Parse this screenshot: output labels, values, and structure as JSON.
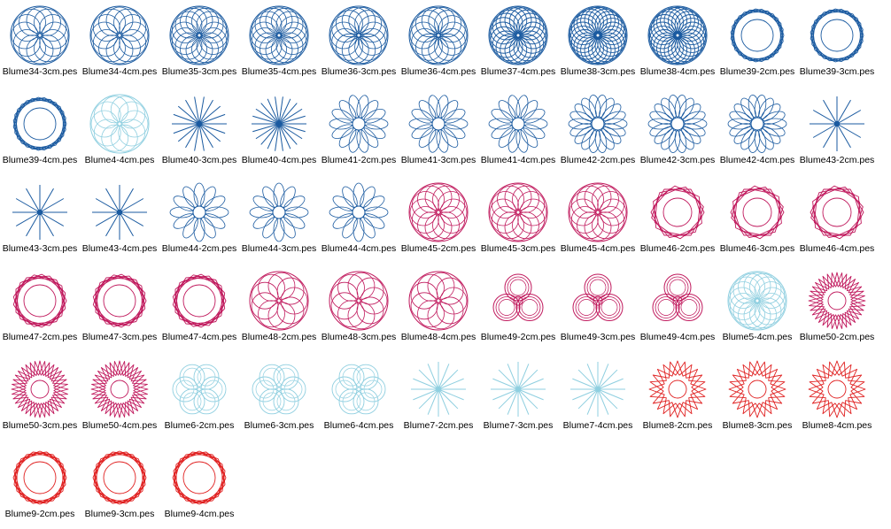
{
  "window": {
    "title": ""
  },
  "colors": {
    "blue": "#1a5aa0",
    "lightblue": "#8fcfe0",
    "magenta": "#c0185c",
    "red": "#e02020",
    "label": "#000000",
    "background": "#ffffff"
  },
  "files": [
    {
      "name": "Blume34-3cm.pes",
      "color": "blue",
      "pattern": "rosette",
      "petals": 12
    },
    {
      "name": "Blume34-4cm.pes",
      "color": "blue",
      "pattern": "rosette",
      "petals": 12
    },
    {
      "name": "Blume35-3cm.pes",
      "color": "blue",
      "pattern": "rosette",
      "petals": 16
    },
    {
      "name": "Blume35-4cm.pes",
      "color": "blue",
      "pattern": "rosette",
      "petals": 16
    },
    {
      "name": "Blume36-3cm.pes",
      "color": "blue",
      "pattern": "rosette",
      "petals": 14
    },
    {
      "name": "Blume36-4cm.pes",
      "color": "blue",
      "pattern": "rosette",
      "petals": 14
    },
    {
      "name": "Blume37-4cm.pes",
      "color": "blue",
      "pattern": "dense",
      "petals": 20
    },
    {
      "name": "Blume38-3cm.pes",
      "color": "blue",
      "pattern": "dense",
      "petals": 24
    },
    {
      "name": "Blume38-4cm.pes",
      "color": "blue",
      "pattern": "dense",
      "petals": 24
    },
    {
      "name": "Blume39-2cm.pes",
      "color": "blue",
      "pattern": "polygon",
      "petals": 9
    },
    {
      "name": "Blume39-3cm.pes",
      "color": "blue",
      "pattern": "polygon",
      "petals": 9
    },
    {
      "name": "Blume39-4cm.pes",
      "color": "blue",
      "pattern": "polygon",
      "petals": 9
    },
    {
      "name": "Blume4-4cm.pes",
      "color": "lightblue",
      "pattern": "rosette",
      "petals": 10
    },
    {
      "name": "Blume40-3cm.pes",
      "color": "blue",
      "pattern": "star",
      "petals": 18
    },
    {
      "name": "Blume40-4cm.pes",
      "color": "blue",
      "pattern": "star",
      "petals": 22
    },
    {
      "name": "Blume41-2cm.pes",
      "color": "blue",
      "pattern": "ring",
      "petals": 14
    },
    {
      "name": "Blume41-3cm.pes",
      "color": "blue",
      "pattern": "ring",
      "petals": 14
    },
    {
      "name": "Blume41-4cm.pes",
      "color": "blue",
      "pattern": "ring",
      "petals": 14
    },
    {
      "name": "Blume42-2cm.pes",
      "color": "blue",
      "pattern": "ring",
      "petals": 18
    },
    {
      "name": "Blume42-3cm.pes",
      "color": "blue",
      "pattern": "ring",
      "petals": 18
    },
    {
      "name": "Blume42-4cm.pes",
      "color": "blue",
      "pattern": "ring",
      "petals": 18
    },
    {
      "name": "Blume43-2cm.pes",
      "color": "blue",
      "pattern": "star",
      "petals": 12
    },
    {
      "name": "Blume43-3cm.pes",
      "color": "blue",
      "pattern": "star",
      "petals": 12
    },
    {
      "name": "Blume43-4cm.pes",
      "color": "blue",
      "pattern": "star",
      "petals": 12
    },
    {
      "name": "Blume44-2cm.pes",
      "color": "blue",
      "pattern": "ring",
      "petals": 12
    },
    {
      "name": "Blume44-3cm.pes",
      "color": "blue",
      "pattern": "ring",
      "petals": 12
    },
    {
      "name": "Blume44-4cm.pes",
      "color": "blue",
      "pattern": "ring",
      "petals": 12
    },
    {
      "name": "Blume45-2cm.pes",
      "color": "magenta",
      "pattern": "rosette",
      "petals": 12
    },
    {
      "name": "Blume45-3cm.pes",
      "color": "magenta",
      "pattern": "rosette",
      "petals": 12
    },
    {
      "name": "Blume45-4cm.pes",
      "color": "magenta",
      "pattern": "rosette",
      "petals": 12
    },
    {
      "name": "Blume46-2cm.pes",
      "color": "magenta",
      "pattern": "hexagon",
      "petals": 6
    },
    {
      "name": "Blume46-3cm.pes",
      "color": "magenta",
      "pattern": "hexagon",
      "petals": 6
    },
    {
      "name": "Blume46-4cm.pes",
      "color": "magenta",
      "pattern": "hexagon",
      "petals": 6
    },
    {
      "name": "Blume47-2cm.pes",
      "color": "magenta",
      "pattern": "polygon",
      "petals": 7
    },
    {
      "name": "Blume47-3cm.pes",
      "color": "magenta",
      "pattern": "polygon",
      "petals": 7
    },
    {
      "name": "Blume47-4cm.pes",
      "color": "magenta",
      "pattern": "polygon",
      "petals": 7
    },
    {
      "name": "Blume48-2cm.pes",
      "color": "magenta",
      "pattern": "rosette",
      "petals": 9
    },
    {
      "name": "Blume48-3cm.pes",
      "color": "magenta",
      "pattern": "rosette",
      "petals": 9
    },
    {
      "name": "Blume48-4cm.pes",
      "color": "magenta",
      "pattern": "rosette",
      "petals": 9
    },
    {
      "name": "Blume49-2cm.pes",
      "color": "magenta",
      "pattern": "trefoil",
      "petals": 3
    },
    {
      "name": "Blume49-3cm.pes",
      "color": "magenta",
      "pattern": "trefoil",
      "petals": 3
    },
    {
      "name": "Blume49-4cm.pes",
      "color": "magenta",
      "pattern": "trefoil",
      "petals": 3
    },
    {
      "name": "Blume5-4cm.pes",
      "color": "lightblue",
      "pattern": "rosette",
      "petals": 16
    },
    {
      "name": "Blume50-2cm.pes",
      "color": "magenta",
      "pattern": "spiky",
      "petals": 12
    },
    {
      "name": "Blume50-3cm.pes",
      "color": "magenta",
      "pattern": "spiky",
      "petals": 12
    },
    {
      "name": "Blume50-4cm.pes",
      "color": "magenta",
      "pattern": "spiky",
      "petals": 12
    },
    {
      "name": "Blume6-2cm.pes",
      "color": "lightblue",
      "pattern": "flower",
      "petals": 6
    },
    {
      "name": "Blume6-3cm.pes",
      "color": "lightblue",
      "pattern": "flower",
      "petals": 6
    },
    {
      "name": "Blume6-4cm.pes",
      "color": "lightblue",
      "pattern": "flower",
      "petals": 6
    },
    {
      "name": "Blume7-2cm.pes",
      "color": "lightblue",
      "pattern": "star",
      "petals": 16
    },
    {
      "name": "Blume7-3cm.pes",
      "color": "lightblue",
      "pattern": "star",
      "petals": 16
    },
    {
      "name": "Blume7-4cm.pes",
      "color": "lightblue",
      "pattern": "star",
      "petals": 16
    },
    {
      "name": "Blume8-2cm.pes",
      "color": "red",
      "pattern": "spiky",
      "petals": 8
    },
    {
      "name": "Blume8-3cm.pes",
      "color": "red",
      "pattern": "spiky",
      "petals": 8
    },
    {
      "name": "Blume8-4cm.pes",
      "color": "red",
      "pattern": "spiky",
      "petals": 8
    },
    {
      "name": "Blume9-2cm.pes",
      "color": "red",
      "pattern": "polygon",
      "petals": 8
    },
    {
      "name": "Blume9-3cm.pes",
      "color": "red",
      "pattern": "polygon",
      "petals": 8
    },
    {
      "name": "Blume9-4cm.pes",
      "color": "red",
      "pattern": "polygon",
      "petals": 8
    }
  ]
}
